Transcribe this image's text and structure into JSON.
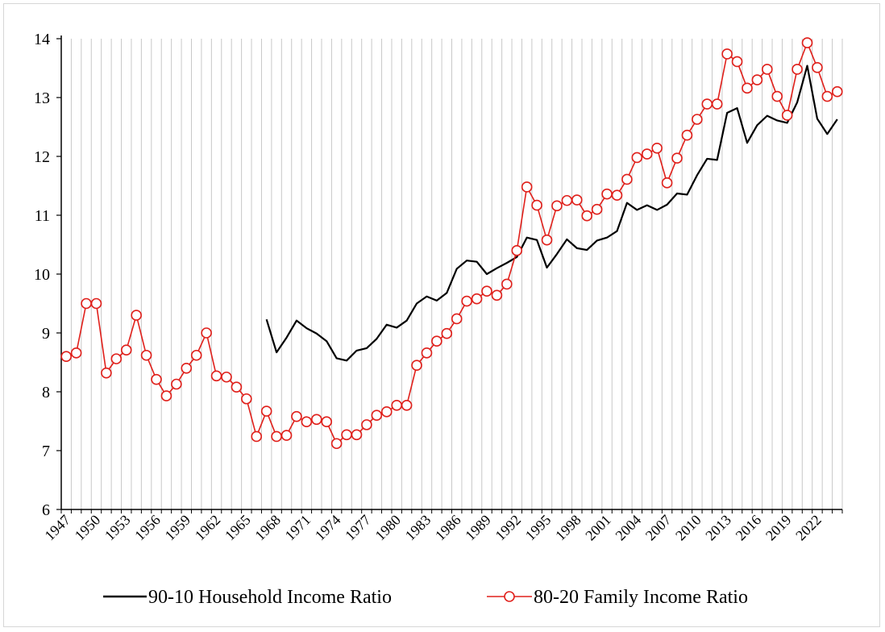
{
  "chart_data": {
    "type": "line",
    "title": "",
    "xlabel": "",
    "ylabel": "",
    "ylim": [
      6,
      14
    ],
    "yticks": [
      6,
      7,
      8,
      9,
      10,
      11,
      12,
      13,
      14
    ],
    "xlim": [
      1947,
      2024
    ],
    "xtick_labels": [
      "1947",
      "1950",
      "1953",
      "1956",
      "1959",
      "1962",
      "1965",
      "1968",
      "1971",
      "1974",
      "1977",
      "1980",
      "1983",
      "1986",
      "1989",
      "1992",
      "1995",
      "1998",
      "2001",
      "2004",
      "2007",
      "2010",
      "2013",
      "2016",
      "2019",
      "2022"
    ],
    "grid": "vertical",
    "legend_position": "bottom",
    "series": [
      {
        "name": "90-10 Household Income Ratio",
        "color": "#000000",
        "marker": "none",
        "x": [
          1967,
          1968,
          1969,
          1970,
          1971,
          1972,
          1973,
          1974,
          1975,
          1976,
          1977,
          1978,
          1979,
          1980,
          1981,
          1982,
          1983,
          1984,
          1985,
          1986,
          1987,
          1988,
          1989,
          1990,
          1991,
          1992,
          1993,
          1994,
          1995,
          1996,
          1997,
          1998,
          1999,
          2000,
          2001,
          2002,
          2003,
          2004,
          2005,
          2006,
          2007,
          2008,
          2009,
          2010,
          2011,
          2012,
          2013,
          2014,
          2015,
          2016,
          2017,
          2018,
          2019,
          2020,
          2021,
          2022,
          2023,
          2024
        ],
        "values": [
          9.23,
          8.67,
          8.92,
          9.21,
          9.08,
          8.99,
          8.86,
          8.57,
          8.53,
          8.7,
          8.74,
          8.9,
          9.14,
          9.09,
          9.21,
          9.5,
          9.62,
          9.55,
          9.68,
          10.09,
          10.23,
          10.21,
          10.0,
          10.1,
          10.19,
          10.29,
          10.62,
          10.58,
          10.11,
          10.34,
          10.59,
          10.44,
          10.41,
          10.57,
          10.62,
          10.73,
          11.21,
          11.09,
          11.17,
          11.09,
          11.18,
          11.37,
          11.35,
          11.68,
          11.96,
          11.94,
          12.74,
          12.82,
          12.23,
          12.53,
          12.69,
          12.61,
          12.57,
          12.92,
          13.54,
          12.64,
          12.38,
          12.63
        ]
      },
      {
        "name": "80-20 Family Income Ratio",
        "color": "#e0201b",
        "marker": "open-circle",
        "x": [
          1947,
          1948,
          1949,
          1950,
          1951,
          1952,
          1953,
          1954,
          1955,
          1956,
          1957,
          1958,
          1959,
          1960,
          1961,
          1962,
          1963,
          1964,
          1965,
          1966,
          1967,
          1968,
          1969,
          1970,
          1971,
          1972,
          1973,
          1974,
          1975,
          1976,
          1977,
          1978,
          1979,
          1980,
          1981,
          1982,
          1983,
          1984,
          1985,
          1986,
          1987,
          1988,
          1989,
          1990,
          1991,
          1992,
          1993,
          1994,
          1995,
          1996,
          1997,
          1998,
          1999,
          2000,
          2001,
          2002,
          2003,
          2004,
          2005,
          2006,
          2007,
          2008,
          2009,
          2010,
          2011,
          2012,
          2013,
          2014,
          2015,
          2016,
          2017,
          2018,
          2019,
          2020,
          2021,
          2022,
          2023,
          2024
        ],
        "values": [
          8.6,
          8.66,
          9.5,
          9.5,
          8.32,
          8.56,
          8.71,
          9.3,
          8.62,
          8.21,
          7.93,
          8.13,
          8.4,
          8.62,
          9.0,
          8.27,
          8.25,
          8.08,
          7.88,
          7.24,
          7.67,
          7.24,
          7.26,
          7.58,
          7.49,
          7.53,
          7.49,
          7.12,
          7.27,
          7.27,
          7.44,
          7.6,
          7.66,
          7.77,
          7.77,
          8.45,
          8.66,
          8.86,
          8.99,
          9.24,
          9.54,
          9.58,
          9.71,
          9.64,
          9.83,
          10.4,
          11.48,
          11.17,
          10.58,
          11.16,
          11.25,
          11.26,
          10.99,
          11.1,
          11.36,
          11.34,
          11.61,
          11.98,
          12.04,
          12.14,
          11.55,
          11.97,
          12.36,
          12.63,
          12.89,
          12.89,
          13.74,
          13.61,
          13.16,
          13.3,
          13.48,
          13.02,
          12.7,
          13.48,
          13.93,
          13.51,
          13.02,
          13.1
        ]
      }
    ]
  }
}
